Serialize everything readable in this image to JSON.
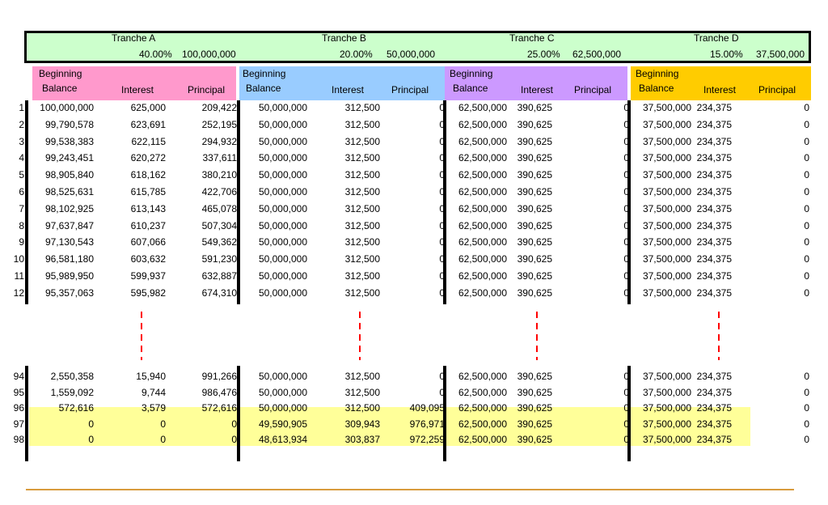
{
  "tranches": [
    {
      "name": "Tranche A",
      "percent": "40.00%",
      "amount": "100,000,000"
    },
    {
      "name": "Tranche B",
      "percent": "20.00%",
      "amount": "50,000,000"
    },
    {
      "name": "Tranche C",
      "percent": "25.00%",
      "amount": "62,500,000"
    },
    {
      "name": "Tranche D",
      "percent": "15.00%",
      "amount": "37,500,000"
    }
  ],
  "columns": {
    "beginning": "Beginning",
    "balance": "Balance",
    "interest": "Interest",
    "principal": "Principal"
  },
  "colors": {
    "header_green": "#ccffcc",
    "tranche_a": "#ff99cc",
    "tranche_b": "#99ccff",
    "tranche_c": "#cc99ff",
    "tranche_d": "#ffcc00",
    "highlight": "#ffff99",
    "dash": "#ff0000",
    "rule": "#d89b3d"
  },
  "rows": [
    {
      "n": "1",
      "a": [
        "100,000,000",
        "625,000",
        "209,422"
      ],
      "b": [
        "50,000,000",
        "312,500",
        "0"
      ],
      "c": [
        "62,500,000",
        "390,625",
        "0"
      ],
      "d": [
        "37,500,000",
        "234,375",
        "0"
      ]
    },
    {
      "n": "2",
      "a": [
        "99,790,578",
        "623,691",
        "252,195"
      ],
      "b": [
        "50,000,000",
        "312,500",
        "0"
      ],
      "c": [
        "62,500,000",
        "390,625",
        "0"
      ],
      "d": [
        "37,500,000",
        "234,375",
        "0"
      ]
    },
    {
      "n": "3",
      "a": [
        "99,538,383",
        "622,115",
        "294,932"
      ],
      "b": [
        "50,000,000",
        "312,500",
        "0"
      ],
      "c": [
        "62,500,000",
        "390,625",
        "0"
      ],
      "d": [
        "37,500,000",
        "234,375",
        "0"
      ]
    },
    {
      "n": "4",
      "a": [
        "99,243,451",
        "620,272",
        "337,611"
      ],
      "b": [
        "50,000,000",
        "312,500",
        "0"
      ],
      "c": [
        "62,500,000",
        "390,625",
        "0"
      ],
      "d": [
        "37,500,000",
        "234,375",
        "0"
      ]
    },
    {
      "n": "5",
      "a": [
        "98,905,840",
        "618,162",
        "380,210"
      ],
      "b": [
        "50,000,000",
        "312,500",
        "0"
      ],
      "c": [
        "62,500,000",
        "390,625",
        "0"
      ],
      "d": [
        "37,500,000",
        "234,375",
        "0"
      ]
    },
    {
      "n": "6",
      "a": [
        "98,525,631",
        "615,785",
        "422,706"
      ],
      "b": [
        "50,000,000",
        "312,500",
        "0"
      ],
      "c": [
        "62,500,000",
        "390,625",
        "0"
      ],
      "d": [
        "37,500,000",
        "234,375",
        "0"
      ]
    },
    {
      "n": "7",
      "a": [
        "98,102,925",
        "613,143",
        "465,078"
      ],
      "b": [
        "50,000,000",
        "312,500",
        "0"
      ],
      "c": [
        "62,500,000",
        "390,625",
        "0"
      ],
      "d": [
        "37,500,000",
        "234,375",
        "0"
      ]
    },
    {
      "n": "8",
      "a": [
        "97,637,847",
        "610,237",
        "507,304"
      ],
      "b": [
        "50,000,000",
        "312,500",
        "0"
      ],
      "c": [
        "62,500,000",
        "390,625",
        "0"
      ],
      "d": [
        "37,500,000",
        "234,375",
        "0"
      ]
    },
    {
      "n": "9",
      "a": [
        "97,130,543",
        "607,066",
        "549,362"
      ],
      "b": [
        "50,000,000",
        "312,500",
        "0"
      ],
      "c": [
        "62,500,000",
        "390,625",
        "0"
      ],
      "d": [
        "37,500,000",
        "234,375",
        "0"
      ]
    },
    {
      "n": "10",
      "a": [
        "96,581,180",
        "603,632",
        "591,230"
      ],
      "b": [
        "50,000,000",
        "312,500",
        "0"
      ],
      "c": [
        "62,500,000",
        "390,625",
        "0"
      ],
      "d": [
        "37,500,000",
        "234,375",
        "0"
      ]
    },
    {
      "n": "11",
      "a": [
        "95,989,950",
        "599,937",
        "632,887"
      ],
      "b": [
        "50,000,000",
        "312,500",
        "0"
      ],
      "c": [
        "62,500,000",
        "390,625",
        "0"
      ],
      "d": [
        "37,500,000",
        "234,375",
        "0"
      ]
    },
    {
      "n": "12",
      "a": [
        "95,357,063",
        "595,982",
        "674,310"
      ],
      "b": [
        "50,000,000",
        "312,500",
        "0"
      ],
      "c": [
        "62,500,000",
        "390,625",
        "0"
      ],
      "d": [
        "37,500,000",
        "234,375",
        "0"
      ]
    }
  ],
  "tail_rows": [
    {
      "n": "94",
      "a": [
        "2,550,358",
        "15,940",
        "991,266"
      ],
      "b": [
        "50,000,000",
        "312,500",
        "0"
      ],
      "c": [
        "62,500,000",
        "390,625",
        "0"
      ],
      "d": [
        "37,500,000",
        "234,375",
        "0"
      ]
    },
    {
      "n": "95",
      "a": [
        "1,559,092",
        "9,744",
        "986,476"
      ],
      "b": [
        "50,000,000",
        "312,500",
        "0"
      ],
      "c": [
        "62,500,000",
        "390,625",
        "0"
      ],
      "d": [
        "37,500,000",
        "234,375",
        "0"
      ]
    },
    {
      "n": "96",
      "a": [
        "572,616",
        "3,579",
        "572,616"
      ],
      "b": [
        "50,000,000",
        "312,500",
        "409,095"
      ],
      "c": [
        "62,500,000",
        "390,625",
        "0"
      ],
      "d": [
        "37,500,000",
        "234,375",
        "0"
      ]
    },
    {
      "n": "97",
      "a": [
        "0",
        "0",
        "0"
      ],
      "b": [
        "49,590,905",
        "309,943",
        "976,971"
      ],
      "c": [
        "62,500,000",
        "390,625",
        "0"
      ],
      "d": [
        "37,500,000",
        "234,375",
        "0"
      ]
    },
    {
      "n": "98",
      "a": [
        "0",
        "0",
        "0"
      ],
      "b": [
        "48,613,934",
        "303,837",
        "972,259"
      ],
      "c": [
        "62,500,000",
        "390,625",
        "0"
      ],
      "d": [
        "37,500,000",
        "234,375",
        "0"
      ]
    }
  ]
}
